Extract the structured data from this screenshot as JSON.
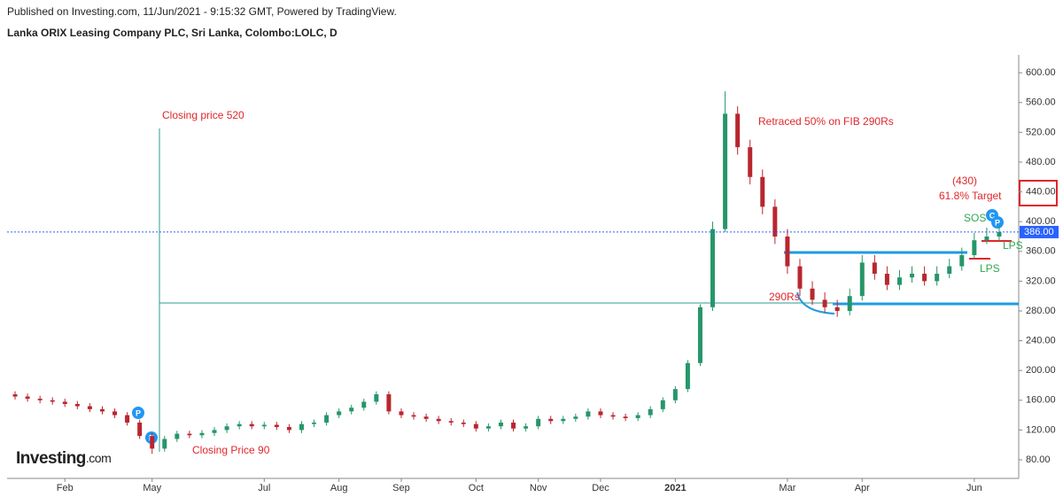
{
  "chart_data": {
    "type": "candlestick",
    "subtitle": "Published on Investing.com, 11/Jun/2021 - 9:15:32 GMT, Powered by TradingView.",
    "title": "Lanka ORIX Leasing Company PLC, Sri Lanka, Colombo:LOLC, D",
    "logo": "Investing",
    "logo_suffix": ".com",
    "categories": [
      null,
      null,
      null,
      null,
      "Feb",
      null,
      null,
      null,
      null,
      null,
      null,
      "May",
      null,
      null,
      null,
      null,
      null,
      null,
      null,
      null,
      "Jul",
      null,
      null,
      null,
      null,
      null,
      "Aug",
      null,
      null,
      null,
      null,
      "Sep",
      null,
      null,
      null,
      null,
      null,
      "Oct",
      null,
      null,
      null,
      null,
      "Nov",
      null,
      null,
      null,
      null,
      "Dec",
      null,
      null,
      null,
      null,
      null,
      "2021",
      null,
      null,
      null,
      null,
      null,
      null,
      null,
      null,
      "Mar",
      null,
      null,
      null,
      null,
      null,
      "Apr",
      null,
      null,
      null,
      null,
      null,
      null,
      null,
      null,
      "Jun",
      null,
      null
    ],
    "open": [
      168,
      165,
      162,
      160,
      158,
      155,
      152,
      148,
      145,
      140,
      130,
      112,
      95,
      108,
      115,
      113,
      116,
      120,
      125,
      128,
      125,
      127,
      124,
      120,
      128,
      130,
      140,
      145,
      150,
      158,
      168,
      145,
      140,
      138,
      135,
      132,
      130,
      128,
      122,
      125,
      130,
      122,
      125,
      135,
      132,
      135,
      138,
      145,
      140,
      138,
      136,
      140,
      148,
      160,
      175,
      210,
      285,
      390,
      545,
      500,
      460,
      420,
      380,
      340,
      310,
      295,
      285,
      280,
      300,
      345,
      330,
      315,
      325,
      330,
      320,
      330,
      340,
      355,
      375,
      380
    ],
    "high": [
      172,
      169,
      166,
      164,
      162,
      159,
      156,
      152,
      149,
      144,
      134,
      116,
      112,
      119,
      119,
      120,
      124,
      129,
      132,
      132,
      131,
      131,
      128,
      132,
      134,
      144,
      149,
      154,
      162,
      172,
      172,
      149,
      144,
      142,
      139,
      136,
      134,
      132,
      129,
      134,
      134,
      129,
      139,
      139,
      139,
      142,
      149,
      149,
      144,
      142,
      144,
      152,
      164,
      179,
      214,
      289,
      400,
      575,
      555,
      510,
      470,
      430,
      390,
      350,
      320,
      305,
      295,
      310,
      355,
      355,
      340,
      335,
      340,
      340,
      340,
      350,
      365,
      385,
      392,
      394
    ],
    "low": [
      161,
      158,
      156,
      154,
      151,
      148,
      144,
      141,
      136,
      126,
      108,
      88,
      91,
      104,
      109,
      109,
      112,
      116,
      121,
      121,
      121,
      120,
      116,
      116,
      124,
      126,
      136,
      141,
      146,
      154,
      141,
      136,
      134,
      131,
      128,
      126,
      124,
      118,
      118,
      121,
      118,
      118,
      121,
      128,
      128,
      131,
      134,
      136,
      134,
      132,
      132,
      136,
      144,
      156,
      171,
      206,
      280,
      386,
      490,
      450,
      410,
      370,
      330,
      300,
      288,
      278,
      272,
      274,
      294,
      322,
      308,
      308,
      318,
      314,
      314,
      324,
      334,
      350,
      370,
      374
    ],
    "close": [
      165,
      162,
      160,
      158,
      155,
      152,
      148,
      145,
      140,
      130,
      112,
      95,
      108,
      115,
      113,
      116,
      120,
      125,
      128,
      125,
      127,
      124,
      120,
      128,
      130,
      140,
      145,
      150,
      158,
      168,
      145,
      140,
      138,
      135,
      132,
      130,
      128,
      122,
      125,
      130,
      122,
      125,
      135,
      132,
      135,
      138,
      145,
      140,
      138,
      136,
      140,
      148,
      160,
      175,
      210,
      285,
      390,
      545,
      500,
      460,
      420,
      380,
      340,
      310,
      295,
      285,
      280,
      300,
      345,
      330,
      315,
      325,
      330,
      320,
      330,
      340,
      355,
      375,
      380,
      386
    ],
    "up_color": "#26966a",
    "down_color": "#b9262f",
    "ylim": [
      55,
      624
    ],
    "yticks": [
      {
        "value": 80,
        "label": "80.00"
      },
      {
        "value": 120,
        "label": "120.00"
      },
      {
        "value": 160,
        "label": "160.00"
      },
      {
        "value": 200,
        "label": "200.00"
      },
      {
        "value": 240,
        "label": "240.00"
      },
      {
        "value": 280,
        "label": "280.00"
      },
      {
        "value": 320,
        "label": "320.00"
      },
      {
        "value": 360,
        "label": "360.00"
      },
      {
        "value": 400,
        "label": "400.00"
      },
      {
        "value": 440,
        "label": "440.00"
      },
      {
        "value": 480,
        "label": "480.00"
      },
      {
        "value": 520,
        "label": "520.00"
      },
      {
        "value": 560,
        "label": "560.00"
      },
      {
        "value": 600,
        "label": "600.00"
      }
    ],
    "last_price": {
      "value": 386,
      "label": "386.00"
    },
    "annotations": [
      "Closing price 520",
      "Retraced 50% on FIB 290Rs",
      "(430)",
      "61.8% Target",
      "SOS",
      "LPS",
      "LPS",
      "290Rs",
      "Closing Price 90",
      "P",
      "P",
      "P",
      "C"
    ]
  }
}
